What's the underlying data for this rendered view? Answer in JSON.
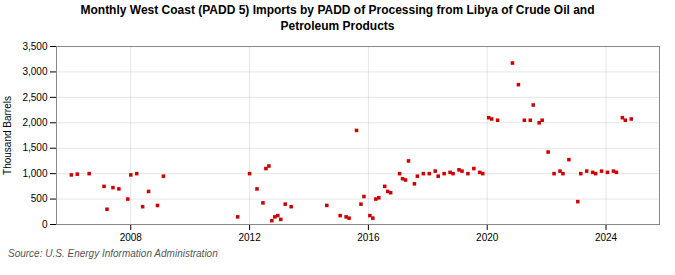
{
  "chart_data": {
    "type": "scatter",
    "title": "Monthly West Coast (PADD 5) Imports by PADD of Processing from Libya of Crude Oil and\nPetroleum Products",
    "y_label": "Thousand Barrels",
    "source": "Source: U.S. Energy Information Administration",
    "color": "#cc0000",
    "marker": "square",
    "grid": true,
    "xlim": [
      2005.5,
      2025.8
    ],
    "xticks": [
      2008,
      2012,
      2016,
      2020,
      2024
    ],
    "ylim": [
      0,
      3500
    ],
    "yticks": [
      0,
      500,
      {
        "value": 1000,
        "label": "1,000"
      },
      {
        "value": 1500,
        "label": "1,500"
      },
      {
        "value": 2000,
        "label": "2,000"
      },
      {
        "value": 2500,
        "label": "2,500"
      },
      {
        "value": 3000,
        "label": "3,000"
      },
      {
        "value": 3500,
        "label": "3,500"
      }
    ],
    "x": [
      2006.0,
      2006.2,
      2006.6,
      2007.1,
      2007.2,
      2007.4,
      2007.6,
      2007.9,
      2008.0,
      2008.2,
      2008.4,
      2008.6,
      2008.9,
      2009.1,
      2011.6,
      2012.0,
      2012.25,
      2012.45,
      2012.55,
      2012.65,
      2012.75,
      2012.85,
      2012.95,
      2013.05,
      2013.2,
      2013.4,
      2014.6,
      2015.05,
      2015.25,
      2015.35,
      2015.6,
      2015.75,
      2015.85,
      2016.05,
      2016.15,
      2016.25,
      2016.35,
      2016.55,
      2016.65,
      2016.75,
      2017.05,
      2017.15,
      2017.25,
      2017.35,
      2017.55,
      2017.65,
      2017.85,
      2018.05,
      2018.25,
      2018.35,
      2018.55,
      2018.75,
      2018.85,
      2019.05,
      2019.15,
      2019.35,
      2019.55,
      2019.75,
      2019.85,
      2020.05,
      2020.15,
      2020.35,
      2020.85,
      2021.05,
      2021.25,
      2021.45,
      2021.55,
      2021.75,
      2021.85,
      2022.05,
      2022.25,
      2022.45,
      2022.55,
      2022.75,
      2023.05,
      2023.15,
      2023.35,
      2023.55,
      2023.65,
      2023.85,
      2024.05,
      2024.25,
      2024.35,
      2024.55,
      2024.65,
      2024.85
    ],
    "values": [
      975,
      990,
      1000,
      750,
      300,
      725,
      700,
      500,
      975,
      1000,
      350,
      650,
      375,
      950,
      150,
      1000,
      700,
      425,
      1100,
      1150,
      75,
      150,
      175,
      100,
      400,
      350,
      375,
      175,
      150,
      125,
      1850,
      400,
      550,
      175,
      125,
      500,
      525,
      750,
      650,
      625,
      1000,
      900,
      875,
      1250,
      800,
      950,
      1000,
      1000,
      1050,
      950,
      1000,
      1025,
      1000,
      1075,
      1050,
      1000,
      1100,
      1025,
      1000,
      2100,
      2075,
      2050,
      3175,
      2750,
      2050,
      2050,
      2350,
      2000,
      2050,
      1425,
      1000,
      1050,
      1000,
      1275,
      450,
      1000,
      1050,
      1025,
      1000,
      1050,
      1025,
      1050,
      1025,
      2100,
      2050,
      2075
    ]
  }
}
